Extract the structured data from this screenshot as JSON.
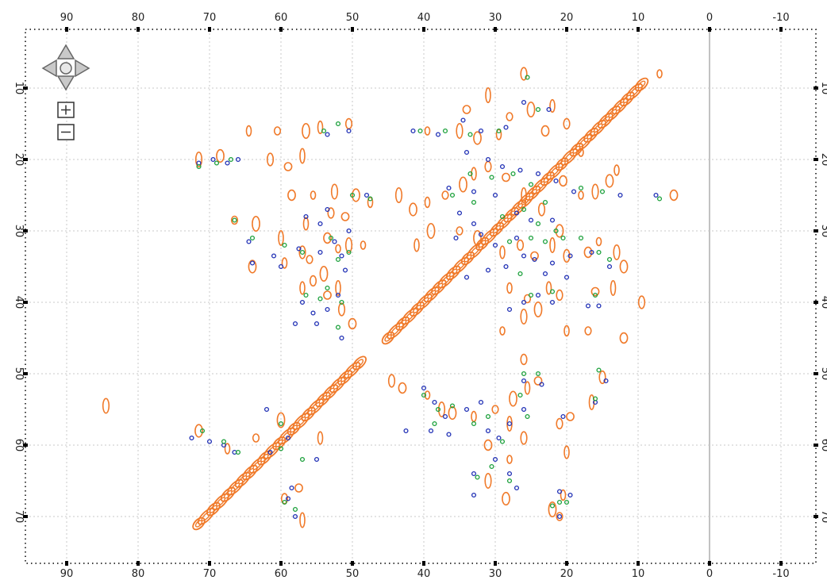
{
  "chart_data": {
    "type": "scatter",
    "subtype": "2D NMR contour spectrum",
    "x_axis": {
      "direction": "reversed",
      "ticks": [
        "90",
        "80",
        "70",
        "60",
        "50",
        "40",
        "30",
        "20",
        "10",
        "0",
        "-10"
      ],
      "range": [
        96,
        -16
      ]
    },
    "y_axis": {
      "direction": "downward",
      "ticks": [
        "10",
        "20",
        "30",
        "40",
        "50",
        "60",
        "70"
      ],
      "range": [
        0,
        77
      ]
    },
    "grid": true,
    "diagonal_segments": [
      {
        "from": [
          71.5,
          71.0
        ],
        "to": [
          49.0,
          48.5
        ]
      },
      {
        "from": [
          45.0,
          45.0
        ],
        "to": [
          9.5,
          9.5
        ]
      }
    ],
    "series": [
      {
        "style": "contour",
        "color": "#f07a2a",
        "points": [
          [
            7,
            8
          ],
          [
            71.5,
            20
          ],
          [
            68.5,
            19.5
          ],
          [
            64.5,
            16
          ],
          [
            60.5,
            16
          ],
          [
            56.5,
            16
          ],
          [
            54.5,
            15.5
          ],
          [
            50.5,
            15
          ],
          [
            59,
            21
          ],
          [
            57,
            19.5
          ],
          [
            61.5,
            20
          ],
          [
            58.5,
            25
          ],
          [
            55.5,
            25
          ],
          [
            52.5,
            24.5
          ],
          [
            49.5,
            25
          ],
          [
            47.5,
            26
          ],
          [
            66.5,
            28.5
          ],
          [
            63.5,
            29
          ],
          [
            56.5,
            29
          ],
          [
            53,
            27.5
          ],
          [
            51,
            28
          ],
          [
            60,
            31
          ],
          [
            57,
            33
          ],
          [
            53.5,
            31
          ],
          [
            52,
            32.5
          ],
          [
            50.5,
            32
          ],
          [
            64,
            35
          ],
          [
            59.5,
            34.5
          ],
          [
            56,
            34
          ],
          [
            54,
            36
          ],
          [
            57,
            38
          ],
          [
            55.5,
            37
          ],
          [
            53.5,
            39
          ],
          [
            52,
            38
          ],
          [
            51.5,
            41
          ],
          [
            50,
            43
          ],
          [
            48.5,
            32
          ],
          [
            84.5,
            54.5
          ],
          [
            71.5,
            58
          ],
          [
            67.5,
            60.5
          ],
          [
            63.5,
            59
          ],
          [
            60,
            56.5
          ],
          [
            54.5,
            59
          ],
          [
            59.5,
            67.5
          ],
          [
            57.5,
            66
          ],
          [
            57,
            70.5
          ],
          [
            44.5,
            51
          ],
          [
            43,
            52
          ],
          [
            39.5,
            53
          ],
          [
            37.5,
            55
          ],
          [
            36,
            55.5
          ],
          [
            33,
            56
          ],
          [
            30,
            55
          ],
          [
            27.5,
            53.5
          ],
          [
            25.5,
            52
          ],
          [
            26,
            48
          ],
          [
            24,
            51
          ],
          [
            28,
            57
          ],
          [
            26,
            59
          ],
          [
            31,
            60
          ],
          [
            28,
            62
          ],
          [
            31,
            65
          ],
          [
            28.5,
            67.5
          ],
          [
            20.5,
            67
          ],
          [
            21,
            70
          ],
          [
            22,
            69
          ],
          [
            20,
            61
          ],
          [
            21,
            57
          ],
          [
            19.5,
            56
          ],
          [
            16.5,
            54
          ],
          [
            15,
            50.5
          ],
          [
            12,
            45
          ],
          [
            39.5,
            16
          ],
          [
            35,
            16
          ],
          [
            32.5,
            17
          ],
          [
            29.5,
            16.5
          ],
          [
            28,
            14
          ],
          [
            25,
            13
          ],
          [
            22,
            12.5
          ],
          [
            20,
            15
          ],
          [
            34,
            13
          ],
          [
            31,
            11
          ],
          [
            26,
            8
          ],
          [
            23,
            16
          ],
          [
            18,
            19
          ],
          [
            43.5,
            25
          ],
          [
            41.5,
            27
          ],
          [
            39.5,
            26
          ],
          [
            37,
            25
          ],
          [
            34.5,
            23.5
          ],
          [
            33,
            22
          ],
          [
            31,
            21
          ],
          [
            28.5,
            22.5
          ],
          [
            26,
            25
          ],
          [
            23.5,
            27
          ],
          [
            20.5,
            23
          ],
          [
            18,
            25
          ],
          [
            16,
            24.5
          ],
          [
            14,
            23
          ],
          [
            13,
            21.5
          ],
          [
            35,
            30
          ],
          [
            32.5,
            31
          ],
          [
            29,
            33
          ],
          [
            26.5,
            32
          ],
          [
            24.5,
            33.5
          ],
          [
            22,
            32
          ],
          [
            20,
            33.5
          ],
          [
            17,
            33
          ],
          [
            15.5,
            31.5
          ],
          [
            13,
            33
          ],
          [
            12,
            35
          ],
          [
            28,
            38
          ],
          [
            25.5,
            39.5
          ],
          [
            24,
            41
          ],
          [
            22.5,
            38
          ],
          [
            21,
            39
          ],
          [
            16,
            38.5
          ],
          [
            13.5,
            38
          ],
          [
            9.5,
            40
          ],
          [
            5,
            25
          ],
          [
            29,
            44
          ],
          [
            26,
            42
          ],
          [
            21,
            30
          ],
          [
            20,
            44
          ],
          [
            17,
            44
          ],
          [
            39,
            30
          ],
          [
            41,
            32
          ]
        ]
      },
      {
        "style": "circle",
        "color": "#1f2fb5",
        "points": [
          [
            71.5,
            20.5
          ],
          [
            69.5,
            20
          ],
          [
            67.5,
            20.5
          ],
          [
            66,
            20
          ],
          [
            64.5,
            31.5
          ],
          [
            64,
            34.5
          ],
          [
            61,
            33.5
          ],
          [
            60,
            35
          ],
          [
            57.5,
            32.5
          ],
          [
            56.5,
            28
          ],
          [
            54.5,
            29
          ],
          [
            53.5,
            27
          ],
          [
            52.5,
            31.5
          ],
          [
            51.5,
            33.5
          ],
          [
            51,
            35.5
          ],
          [
            50.5,
            30
          ],
          [
            52,
            39
          ],
          [
            53.5,
            41
          ],
          [
            55.5,
            41.5
          ],
          [
            57,
            40
          ],
          [
            58,
            43
          ],
          [
            55,
            43
          ],
          [
            51.5,
            45
          ],
          [
            53.5,
            16.5
          ],
          [
            50.5,
            16
          ],
          [
            54.5,
            33
          ],
          [
            48,
            25
          ],
          [
            41.5,
            16
          ],
          [
            38,
            16.5
          ],
          [
            34.5,
            14.5
          ],
          [
            32,
            16
          ],
          [
            28.5,
            15.5
          ],
          [
            26,
            12
          ],
          [
            22.5,
            13
          ],
          [
            34,
            19
          ],
          [
            31,
            20
          ],
          [
            29,
            21
          ],
          [
            26.5,
            21.5
          ],
          [
            24,
            22
          ],
          [
            21.5,
            23
          ],
          [
            19,
            24.5
          ],
          [
            36.5,
            24
          ],
          [
            33,
            24.5
          ],
          [
            30,
            25
          ],
          [
            27,
            27.5
          ],
          [
            25,
            28.5
          ],
          [
            22,
            28.5
          ],
          [
            35,
            27.5
          ],
          [
            33,
            29
          ],
          [
            35.5,
            31
          ],
          [
            32,
            30.5
          ],
          [
            30,
            32
          ],
          [
            27,
            31
          ],
          [
            24.5,
            34
          ],
          [
            22,
            34.5
          ],
          [
            19.5,
            33.5
          ],
          [
            16.5,
            33
          ],
          [
            14,
            35
          ],
          [
            28.5,
            35
          ],
          [
            26,
            33.5
          ],
          [
            23,
            36
          ],
          [
            20,
            36.5
          ],
          [
            31,
            35.5
          ],
          [
            34,
            36.5
          ],
          [
            28,
            41
          ],
          [
            26,
            40
          ],
          [
            24,
            39
          ],
          [
            22,
            40
          ],
          [
            17,
            40.5
          ],
          [
            15.5,
            40.5
          ],
          [
            12.5,
            25
          ],
          [
            7.5,
            25
          ],
          [
            72.5,
            59
          ],
          [
            70,
            59.5
          ],
          [
            68,
            60
          ],
          [
            66.5,
            61
          ],
          [
            62,
            55
          ],
          [
            59,
            59
          ],
          [
            58.5,
            66
          ],
          [
            55,
            62
          ],
          [
            40,
            52
          ],
          [
            38.5,
            54
          ],
          [
            37,
            56
          ],
          [
            34,
            55
          ],
          [
            32,
            54
          ],
          [
            31,
            58
          ],
          [
            29.5,
            59
          ],
          [
            28,
            57
          ],
          [
            26,
            51
          ],
          [
            23.5,
            51.5
          ],
          [
            26,
            55
          ],
          [
            39,
            58
          ],
          [
            36.5,
            58.5
          ],
          [
            42.5,
            58
          ],
          [
            30,
            62
          ],
          [
            33,
            64
          ],
          [
            28,
            64
          ],
          [
            27,
            66
          ],
          [
            21,
            70
          ],
          [
            19.5,
            67
          ],
          [
            21,
            66.5
          ],
          [
            20.5,
            56
          ],
          [
            16,
            54
          ],
          [
            14.5,
            51
          ],
          [
            33,
            67
          ],
          [
            58,
            70
          ],
          [
            59,
            67.5
          ],
          [
            61.5,
            61
          ]
        ]
      },
      {
        "style": "circle",
        "color": "#1aa03a",
        "points": [
          [
            71.5,
            21
          ],
          [
            69,
            20.5
          ],
          [
            67,
            20
          ],
          [
            66.5,
            28.5
          ],
          [
            64,
            31
          ],
          [
            59.5,
            32
          ],
          [
            57,
            33
          ],
          [
            53,
            31
          ],
          [
            52,
            34
          ],
          [
            50.5,
            33
          ],
          [
            53.5,
            38
          ],
          [
            51.5,
            40
          ],
          [
            54.5,
            39.5
          ],
          [
            56.5,
            39
          ],
          [
            52,
            43.5
          ],
          [
            47.5,
            25.5
          ],
          [
            50,
            25
          ],
          [
            52,
            15
          ],
          [
            54,
            16
          ],
          [
            40.5,
            16
          ],
          [
            37,
            16
          ],
          [
            33.5,
            16.5
          ],
          [
            29.5,
            16
          ],
          [
            25.5,
            8.5
          ],
          [
            24,
            13
          ],
          [
            33.5,
            22
          ],
          [
            30.5,
            22.5
          ],
          [
            27.5,
            22
          ],
          [
            25,
            23.5
          ],
          [
            23,
            26
          ],
          [
            18,
            24
          ],
          [
            15,
            24.5
          ],
          [
            36,
            25
          ],
          [
            33,
            26
          ],
          [
            29,
            28
          ],
          [
            26,
            27
          ],
          [
            24,
            29
          ],
          [
            21.5,
            30
          ],
          [
            18,
            31
          ],
          [
            15.5,
            33
          ],
          [
            14,
            34
          ],
          [
            28,
            31.5
          ],
          [
            25,
            31
          ],
          [
            23,
            31.5
          ],
          [
            20.5,
            31
          ],
          [
            26.5,
            36
          ],
          [
            25,
            39
          ],
          [
            22,
            38.5
          ],
          [
            16,
            39
          ],
          [
            7,
            25.5
          ],
          [
            71,
            58
          ],
          [
            68,
            59.5
          ],
          [
            66,
            61
          ],
          [
            60,
            57
          ],
          [
            57,
            62
          ],
          [
            40,
            53
          ],
          [
            38,
            55
          ],
          [
            36,
            54.5
          ],
          [
            33,
            57
          ],
          [
            31,
            56
          ],
          [
            29,
            59.5
          ],
          [
            26,
            50
          ],
          [
            24,
            50
          ],
          [
            26.5,
            53
          ],
          [
            25.5,
            56
          ],
          [
            38.5,
            57
          ],
          [
            30.5,
            63
          ],
          [
            32.5,
            64.5
          ],
          [
            28,
            65
          ],
          [
            20,
            68
          ],
          [
            22,
            68.5
          ],
          [
            21,
            68
          ],
          [
            16,
            53.5
          ],
          [
            15.5,
            49.5
          ],
          [
            58,
            69
          ],
          [
            59.5,
            68
          ],
          [
            60,
            60.5
          ]
        ]
      }
    ]
  },
  "nav_controls": {
    "up_icon": "pan-up-icon",
    "down_icon": "pan-down-icon",
    "left_icon": "pan-left-icon",
    "right_icon": "pan-right-icon",
    "center_icon": "recenter-icon",
    "zoom_in_icon": "zoom-in-icon",
    "zoom_out_icon": "zoom-out-icon"
  },
  "colors": {
    "contour": "#f07a2a",
    "peak_blue": "#1f2fb5",
    "peak_green": "#1aa03a",
    "grid": "#c8c8c8"
  }
}
